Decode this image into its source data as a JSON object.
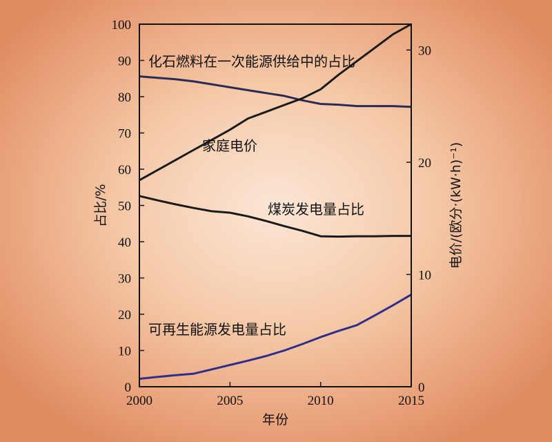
{
  "chart_data": {
    "type": "line",
    "x_axis": {
      "label": "年份",
      "range": [
        2000,
        2015
      ],
      "ticks": [
        2000,
        2005,
        2010,
        2015
      ]
    },
    "y_left": {
      "label": "占比/%",
      "range": [
        0,
        100
      ],
      "ticks": [
        0,
        10,
        20,
        30,
        40,
        50,
        60,
        70,
        80,
        90,
        100
      ]
    },
    "y_right": {
      "label": "电价/(欧分·(kW·h)⁻¹)",
      "range": [
        0,
        32.3
      ],
      "ticks": [
        0,
        10,
        20,
        30
      ]
    },
    "series": [
      {
        "name": "化石燃料在一次能源供给中的占比",
        "axis": "left",
        "color": "#2a2a55",
        "points": [
          [
            2000,
            85.6
          ],
          [
            2002,
            84.8
          ],
          [
            2003,
            84.2
          ],
          [
            2004,
            83.4
          ],
          [
            2005,
            82.6
          ],
          [
            2006,
            81.8
          ],
          [
            2007,
            81.0
          ],
          [
            2008,
            80.2
          ],
          [
            2009,
            79.0
          ],
          [
            2010,
            78.0
          ],
          [
            2011,
            77.8
          ],
          [
            2012,
            77.4
          ],
          [
            2013,
            77.4
          ],
          [
            2014,
            77.4
          ],
          [
            2015,
            77.2
          ]
        ]
      },
      {
        "name": "家庭电价",
        "axis": "right",
        "color": "#1a1a1a",
        "points": [
          [
            2000,
            18.4
          ],
          [
            2001,
            19.3
          ],
          [
            2002,
            20.2
          ],
          [
            2003,
            21.1
          ],
          [
            2004,
            22.0
          ],
          [
            2005,
            22.9
          ],
          [
            2006,
            23.9
          ],
          [
            2007,
            24.5
          ],
          [
            2008,
            25.1
          ],
          [
            2009,
            25.7
          ],
          [
            2010,
            26.5
          ],
          [
            2011,
            27.8
          ],
          [
            2012,
            29.0
          ],
          [
            2013,
            30.2
          ],
          [
            2014,
            31.4
          ],
          [
            2015,
            32.3
          ]
        ]
      },
      {
        "name": "煤炭发电量占比",
        "axis": "left",
        "color": "#1a1a1a",
        "points": [
          [
            2000,
            52.6
          ],
          [
            2001,
            51.4
          ],
          [
            2002,
            50.3
          ],
          [
            2003,
            49.3
          ],
          [
            2004,
            48.4
          ],
          [
            2005,
            48.0
          ],
          [
            2006,
            47.0
          ],
          [
            2007,
            45.7
          ],
          [
            2008,
            44.3
          ],
          [
            2009,
            43.0
          ],
          [
            2010,
            41.5
          ],
          [
            2011,
            41.4
          ],
          [
            2012,
            41.5
          ],
          [
            2013,
            41.5
          ],
          [
            2014,
            41.6
          ],
          [
            2015,
            41.6
          ]
        ]
      },
      {
        "name": "可再生能源发电量占比",
        "axis": "left",
        "color": "#2e2e8a",
        "points": [
          [
            2000,
            2.2
          ],
          [
            2001,
            2.7
          ],
          [
            2002,
            3.2
          ],
          [
            2003,
            3.6
          ],
          [
            2004,
            4.8
          ],
          [
            2005,
            6.0
          ],
          [
            2006,
            7.2
          ],
          [
            2007,
            8.5
          ],
          [
            2008,
            10.0
          ],
          [
            2009,
            11.8
          ],
          [
            2010,
            13.7
          ],
          [
            2011,
            15.4
          ],
          [
            2012,
            17.0
          ],
          [
            2013,
            19.7
          ],
          [
            2014,
            22.5
          ],
          [
            2015,
            25.4
          ]
        ]
      }
    ],
    "annotations": [
      {
        "text": "化石燃料在一次能源供给中的占比",
        "series": 0
      },
      {
        "text": "家庭电价",
        "series": 1
      },
      {
        "text": "煤炭发电量占比",
        "series": 2
      },
      {
        "text": "可再生能源发电量占比",
        "series": 3
      }
    ],
    "grid": false,
    "legend": "none"
  }
}
